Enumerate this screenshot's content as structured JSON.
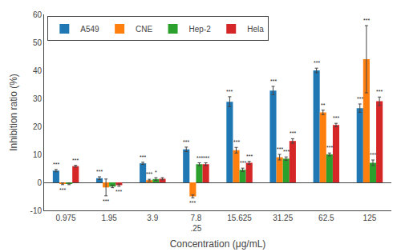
{
  "chart_data": {
    "type": "bar",
    "xlabel": "Concentration (μg/mL)",
    "ylabel": "Inhibition ratio (%)",
    "categories": [
      "0.975",
      "1.95",
      "3.9",
      "7.8\n.25",
      "15.625",
      "31.25",
      "62.5",
      "125"
    ],
    "series": [
      {
        "name": "A549",
        "values": [
          4.2,
          1.5,
          6.8,
          11.8,
          28.8,
          32.8,
          40.0,
          26.5
        ],
        "errors": [
          0.4,
          0.5,
          0.4,
          0.8,
          1.8,
          1.5,
          0.8,
          1.5
        ],
        "significance": [
          "***",
          "***",
          "***",
          "***",
          "***",
          "***",
          "***",
          "***"
        ]
      },
      {
        "name": "CNE",
        "values": [
          -0.5,
          -1.8,
          0.8,
          -5.0,
          11.5,
          9.0,
          25.0,
          44.0
        ],
        "errors": [
          0.3,
          3.0,
          0.3,
          0.5,
          1.0,
          1.0,
          0.8,
          12.0
        ],
        "significance": [
          "***",
          "***",
          "***",
          "***",
          "***",
          "***",
          "**",
          "***"
        ]
      },
      {
        "name": "Hep-2",
        "values": [
          -0.5,
          -1.5,
          1.2,
          6.5,
          4.5,
          8.5,
          10.0,
          7.0
        ],
        "errors": [
          0.3,
          0.4,
          0.5,
          0.5,
          0.6,
          0.6,
          0.5,
          1.0
        ],
        "significance": [
          null,
          null,
          "*",
          "***",
          "***",
          "***",
          "***",
          "***"
        ]
      },
      {
        "name": "Hela",
        "values": [
          5.8,
          -1.0,
          1.3,
          6.5,
          7.0,
          14.8,
          20.5,
          29.0
        ],
        "errors": [
          0.3,
          0.4,
          0.4,
          0.5,
          0.5,
          0.8,
          0.6,
          1.5
        ],
        "significance": [
          "***",
          "***",
          null,
          "***",
          "***",
          "***",
          "***",
          "***"
        ]
      }
    ],
    "ylim": [
      -10,
      60
    ],
    "yticks": [
      -10,
      0,
      10,
      20,
      30,
      40,
      50,
      60
    ],
    "grid": false,
    "legend": "upper left"
  }
}
